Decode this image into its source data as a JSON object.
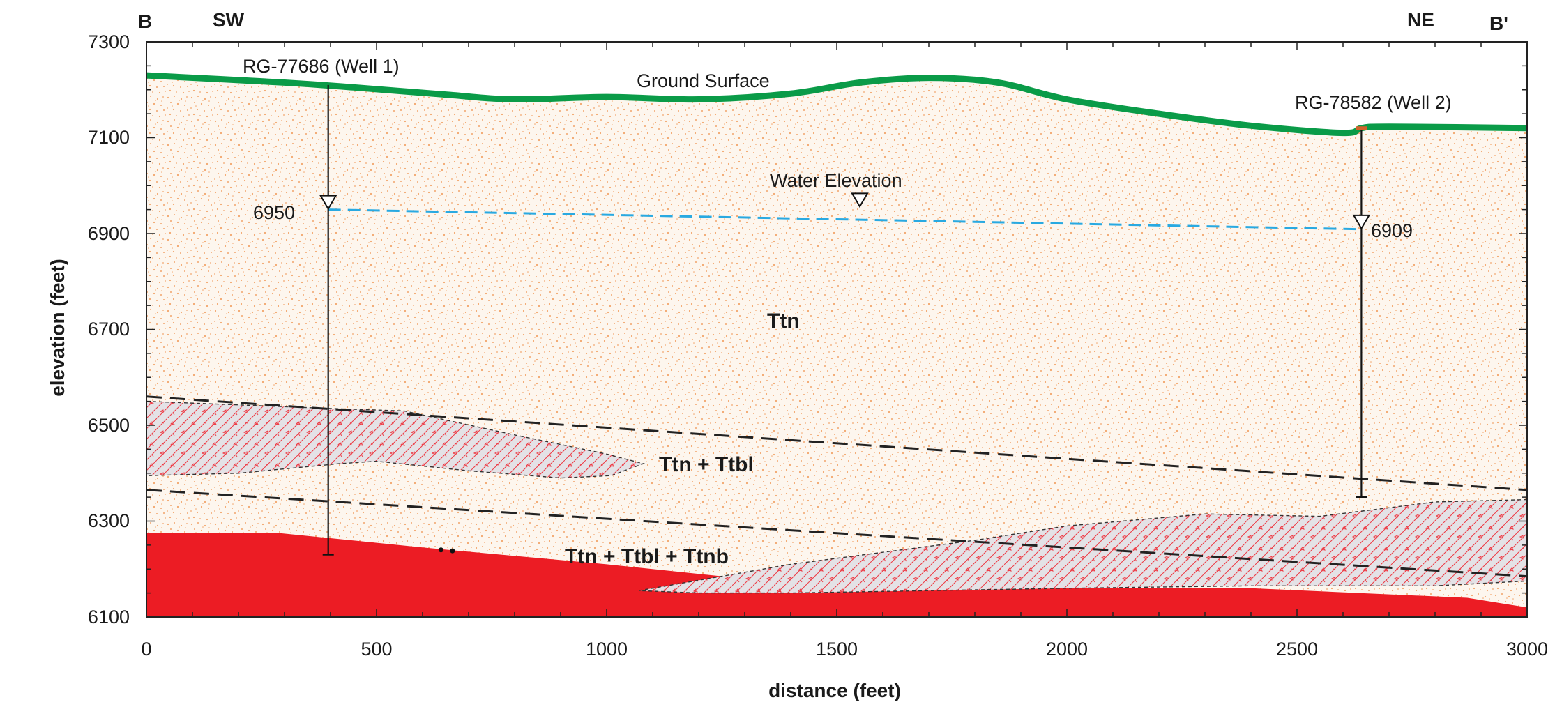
{
  "section": {
    "left_letter": "B",
    "right_letter": "B'",
    "left_direction": "SW",
    "right_direction": "NE"
  },
  "axes": {
    "x_label": "distance (feet)",
    "y_label": "elevation (feet)",
    "x_range": [
      0,
      3000
    ],
    "y_range": [
      6100,
      7300
    ],
    "x_ticks": [
      "0",
      "500",
      "1000",
      "1500",
      "2000",
      "2500",
      "3000"
    ],
    "y_ticks": [
      "7300",
      "7100",
      "6900",
      "6700",
      "6500",
      "6300",
      "6100"
    ],
    "x_tick_values": [
      0,
      500,
      1000,
      1500,
      2000,
      2500,
      3000
    ],
    "y_tick_values": [
      7300,
      7100,
      6900,
      6700,
      6500,
      6300,
      6100
    ]
  },
  "labels": {
    "ground_surface": "Ground Surface",
    "water_elevation": "Water Elevation",
    "unit_ttn": "Ttn",
    "unit_ttn_ttbl": "Ttn + Ttbl",
    "unit_ttn_ttbl_ttnb": "Ttn + Ttbl + Ttnb"
  },
  "wells": [
    {
      "name": "RG-77686 (Well 1)",
      "distance": 395,
      "top": 7210,
      "bottom": 6230,
      "water_level": "6950",
      "water_value": 6950
    },
    {
      "name": "RG-78582 (Well 2)",
      "distance": 2640,
      "top": 7120,
      "bottom": 6350,
      "water_level": "6909",
      "water_value": 6909
    }
  ],
  "colors": {
    "ground_line": "#0a9b48",
    "water_line": "#29a9e1",
    "sand_fill": "#fdf6ee",
    "sand_dots": "#f2a56b",
    "basalt_red": "#ec1c24",
    "mixed_fill": "#e4e2e6",
    "mixed_hatch": "#ee3b45",
    "contact_dash": "#222222"
  },
  "chart_data": {
    "type": "cross-section",
    "x_unit": "feet",
    "y_unit": "feet",
    "ground_surface": {
      "x": [
        0,
        300,
        450,
        650,
        800,
        1000,
        1200,
        1400,
        1550,
        1700,
        1850,
        2000,
        2200,
        2400,
        2600,
        2640,
        2700,
        3000
      ],
      "y": [
        7230,
        7215,
        7205,
        7190,
        7180,
        7185,
        7180,
        7192,
        7215,
        7225,
        7215,
        7180,
        7150,
        7125,
        7110,
        7120,
        7123,
        7120
      ]
    },
    "water_table": {
      "x": [
        395,
        2640
      ],
      "y": [
        6950,
        6909
      ]
    },
    "upper_contacts": [
      {
        "x": [
          0,
          3000
        ],
        "y": [
          6560,
          6365
        ]
      },
      {
        "x": [
          0,
          3000
        ],
        "y": [
          6365,
          6185
        ]
      }
    ],
    "ttbl_lens_upper": {
      "x": [
        0,
        400,
        560,
        800,
        1000,
        1080,
        1010,
        900,
        700,
        500,
        420,
        200,
        0
      ],
      "y": [
        6550,
        6535,
        6530,
        6480,
        6440,
        6420,
        6395,
        6390,
        6405,
        6425,
        6420,
        6400,
        6395
      ]
    },
    "ttbl_lens_lower": {
      "x": [
        1070,
        1400,
        1800,
        2000,
        2300,
        2550,
        2800,
        3000,
        3000,
        2800,
        2400,
        2000,
        1700,
        1400,
        1200,
        1070
      ],
      "y": [
        6155,
        6210,
        6260,
        6290,
        6315,
        6310,
        6340,
        6345,
        6175,
        6165,
        6165,
        6160,
        6155,
        6150,
        6150,
        6155
      ]
    },
    "ttnb_body": {
      "x": [
        0,
        290,
        600,
        1000,
        1300,
        1600,
        2000,
        2400,
        2870,
        3000,
        3000,
        0
      ],
      "y": [
        6275,
        6275,
        6245,
        6210,
        6180,
        6155,
        6160,
        6160,
        6140,
        6120,
        6100,
        6100
      ]
    }
  }
}
